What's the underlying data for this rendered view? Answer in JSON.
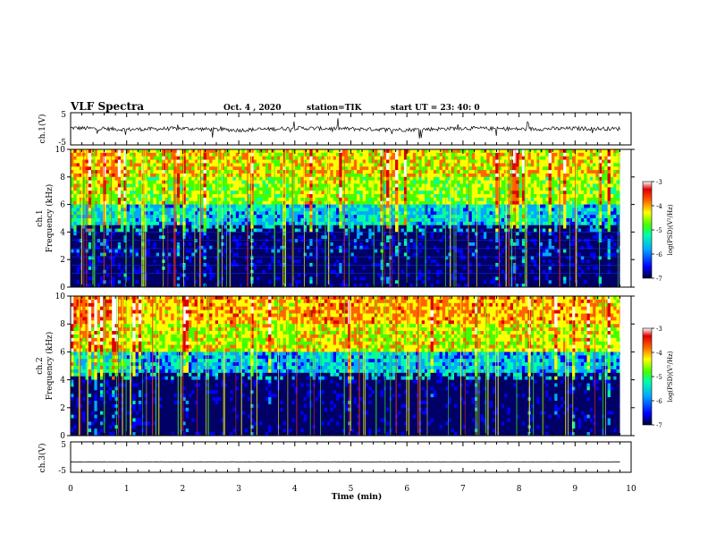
{
  "header": {
    "title": "VLF Spectra",
    "date": "Oct. 4 , 2020",
    "station": "station=TIK",
    "start": "start UT = 23: 40: 0"
  },
  "panels": {
    "ch1_waveform": {
      "ylabel": "ch.1(V)",
      "ytick_top": "5",
      "ytick_bottom": "-5"
    },
    "ch1_spec": {
      "ylabel_line1": "ch.1",
      "ylabel_line2": "Frequency (kHz)"
    },
    "ch2_spec": {
      "ylabel_line1": "ch.2",
      "ylabel_line2": "Frequency (kHz)"
    },
    "ch3_waveform": {
      "ylabel": "ch.3(V)",
      "ytick_top": "5",
      "ytick_bottom": "-5"
    },
    "xlabel": "Time (min)"
  },
  "colorbar": {
    "label": "log(PSD)(V²/Hz)",
    "ticks": [
      "-3",
      "-4",
      "-5",
      "-6",
      "-7"
    ]
  },
  "colors": {
    "scale": [
      "#000066",
      "#0000ff",
      "#00aaff",
      "#00ffaa",
      "#44ff00",
      "#ffff00",
      "#ff6600",
      "#dd0000",
      "#ffffff"
    ]
  },
  "chart_data": [
    {
      "type": "line",
      "panel": "ch.1 waveform",
      "ylabel": "ch.1(V)",
      "ylim": [
        -5,
        5
      ],
      "xlim": [
        0,
        10
      ],
      "x": [
        0,
        1,
        2,
        3,
        4,
        5,
        6,
        7,
        8,
        9,
        9.8
      ],
      "y": [
        0.3,
        -0.2,
        0.1,
        -0.4,
        0.2,
        0.0,
        -0.3,
        0.2,
        -0.1,
        0.1,
        0.0
      ]
    },
    {
      "type": "heatmap",
      "panel": "ch.1 spectrogram",
      "ylabel": "Frequency (kHz)",
      "xlim": [
        0,
        10
      ],
      "ylim": [
        0,
        10
      ],
      "yticks": [
        0,
        2,
        4,
        6,
        8,
        10
      ],
      "zlim": [
        -7,
        -3
      ],
      "x": [
        0,
        1,
        2,
        3,
        4,
        5,
        6,
        7,
        8,
        9
      ],
      "y": [
        1,
        3,
        5,
        7,
        9
      ],
      "z": [
        [
          -6.8,
          -6.9,
          -6.8,
          -6.9,
          -6.8,
          -6.9,
          -6.8,
          -6.9,
          -6.8,
          -6.9
        ],
        [
          -6.5,
          -6.7,
          -6.6,
          -6.7,
          -6.6,
          -6.5,
          -6.7,
          -6.6,
          -6.6,
          -6.7
        ],
        [
          -5.6,
          -5.9,
          -5.8,
          -5.9,
          -5.8,
          -5.7,
          -5.9,
          -5.8,
          -5.8,
          -5.9
        ],
        [
          -4.6,
          -4.9,
          -4.8,
          -4.9,
          -4.7,
          -4.8,
          -4.9,
          -4.8,
          -4.8,
          -4.9
        ],
        [
          -4.2,
          -4.5,
          -4.4,
          -4.5,
          -4.4,
          -4.4,
          -4.5,
          -4.4,
          -4.4,
          -4.5
        ]
      ]
    },
    {
      "type": "heatmap",
      "panel": "ch.2 spectrogram",
      "ylabel": "Frequency (kHz)",
      "xlim": [
        0,
        10
      ],
      "ylim": [
        0,
        10
      ],
      "yticks": [
        0,
        2,
        4,
        6,
        8,
        10
      ],
      "zlim": [
        -7,
        -3
      ],
      "x": [
        0,
        1,
        2,
        3,
        4,
        5,
        6,
        7,
        8,
        9
      ],
      "y": [
        1,
        3,
        5,
        7,
        9
      ],
      "z": [
        [
          -7.0,
          -7.0,
          -7.0,
          -7.0,
          -7.0,
          -7.0,
          -7.0,
          -7.0,
          -7.0,
          -7.0
        ],
        [
          -6.8,
          -6.9,
          -6.9,
          -6.9,
          -6.8,
          -6.9,
          -6.8,
          -6.9,
          -6.9,
          -6.9
        ],
        [
          -5.6,
          -6.0,
          -5.9,
          -6.0,
          -5.8,
          -5.8,
          -5.9,
          -5.9,
          -5.9,
          -6.0
        ],
        [
          -4.4,
          -4.7,
          -4.6,
          -4.7,
          -4.5,
          -4.6,
          -4.6,
          -4.6,
          -4.6,
          -4.7
        ],
        [
          -4.0,
          -4.3,
          -4.2,
          -4.3,
          -4.1,
          -4.2,
          -4.2,
          -4.2,
          -4.2,
          -4.3
        ]
      ]
    },
    {
      "type": "line",
      "panel": "ch.3 waveform",
      "ylabel": "ch.3(V)",
      "ylim": [
        -5,
        5
      ],
      "xlim": [
        0,
        10
      ],
      "x": [
        0,
        2,
        4,
        6,
        8,
        9.8
      ],
      "y": [
        -1.6,
        -1.6,
        -1.6,
        -1.6,
        -1.6,
        -1.6
      ]
    }
  ],
  "xaxis": {
    "label": "Time (min)",
    "ticks": [
      "0",
      "1",
      "2",
      "3",
      "4",
      "5",
      "6",
      "7",
      "8",
      "9",
      "10"
    ]
  }
}
